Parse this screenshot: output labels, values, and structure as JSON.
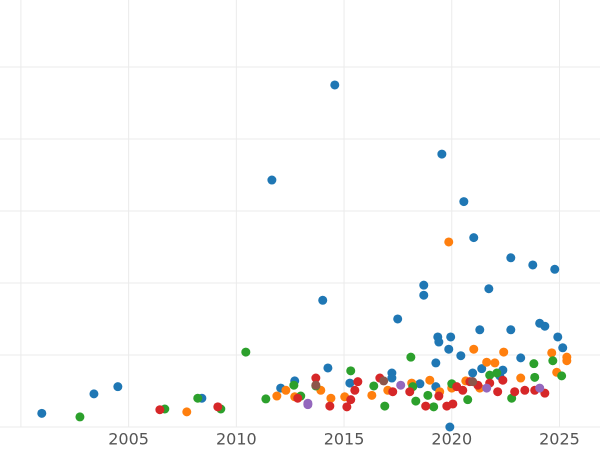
{
  "chart_data": {
    "type": "scatter",
    "xlim": [
      1999.03,
      2026.88
    ],
    "ylim": [
      0,
      5.93
    ],
    "xticks": [
      2005,
      2010,
      2015,
      2020,
      2025
    ],
    "xgrid": [
      2000,
      2005,
      2010,
      2015,
      2020,
      2025
    ],
    "ygrid": [
      0,
      1,
      2,
      3,
      4,
      5
    ],
    "grid": true,
    "series": [
      {
        "color": "#1f77b4",
        "x": [
          2000.97,
          2003.39,
          2004.5,
          2008.4,
          2011.65,
          2012.06,
          2012.71,
          2014.01,
          2014.25,
          2014.57,
          2015.27,
          2017.22,
          2017.22,
          2017.49,
          2018.7,
          2018.7,
          2019.26,
          2019.35,
          2019.4,
          2019.54,
          2019.86,
          2019.95,
          2019.91,
          2020.42,
          2020.56,
          2021.02,
          2020.97,
          2021.3,
          2021.39,
          2021.72,
          2022.23,
          2022.74,
          2022.74,
          2023.2,
          2023.76,
          2024.08,
          2024.32,
          2024.78,
          2024.92,
          2025.15,
          2019.26,
          2018.52,
          2022.37
        ],
        "values": [
          0.19,
          0.46,
          0.56,
          0.4,
          3.43,
          0.54,
          0.64,
          1.76,
          0.82,
          4.75,
          0.61,
          0.75,
          0.68,
          1.5,
          1.97,
          1.83,
          0.89,
          1.25,
          1.18,
          3.79,
          1.08,
          1.25,
          0,
          0.99,
          3.13,
          2.63,
          0.75,
          1.35,
          0.81,
          1.92,
          0.71,
          2.35,
          1.35,
          0.96,
          2.25,
          1.44,
          1.4,
          2.19,
          1.25,
          1.1,
          0.56,
          0.6,
          0.79
        ]
      },
      {
        "color": "#ff7f0e",
        "x": [
          2007.7,
          2011.88,
          2012.3,
          2012.71,
          2013.92,
          2014.39,
          2015.03,
          2016.29,
          2017.03,
          2018.14,
          2018.98,
          2019.86,
          2020.0,
          2020.65,
          2021.02,
          2021.62,
          2022.0,
          2022.41,
          2023.2,
          2024.64,
          2024.87,
          2025.34,
          2025.34,
          2021.3,
          2019.44
        ],
        "values": [
          0.21,
          0.43,
          0.51,
          0.42,
          0.51,
          0.4,
          0.42,
          0.44,
          0.51,
          0.61,
          0.65,
          2.57,
          0.54,
          0.64,
          1.08,
          0.9,
          0.89,
          1.04,
          0.68,
          1.03,
          0.76,
          0.97,
          0.92,
          0.54,
          0.49
        ]
      },
      {
        "color": "#2ca02c",
        "x": [
          2002.74,
          2006.68,
          2008.21,
          2009.28,
          2010.44,
          2011.37,
          2012.67,
          2012.99,
          2013.69,
          2015.31,
          2016.38,
          2016.89,
          2018.1,
          2018.33,
          2018.89,
          2019.16,
          2020.0,
          2020.74,
          2021.76,
          2022.09,
          2022.78,
          2023.81,
          2023.85,
          2024.69,
          2025.1,
          2018.19
        ],
        "values": [
          0.14,
          0.25,
          0.4,
          0.25,
          1.04,
          0.39,
          0.58,
          0.43,
          0.57,
          0.78,
          0.57,
          0.29,
          0.97,
          0.36,
          0.44,
          0.28,
          0.6,
          0.38,
          0.72,
          0.75,
          0.4,
          0.88,
          0.69,
          0.92,
          0.71,
          0.56
        ]
      },
      {
        "color": "#d62728",
        "x": [
          2006.45,
          2009.14,
          2012.85,
          2013.69,
          2014.34,
          2015.13,
          2015.31,
          2015.64,
          2016.66,
          2017.26,
          2018.05,
          2018.79,
          2019.4,
          2019.77,
          2020.05,
          2020.51,
          2020.84,
          2021.21,
          2021.76,
          2022.13,
          2022.37,
          2022.92,
          2023.39,
          2023.85,
          2024.32,
          2015.5,
          2020.23
        ],
        "values": [
          0.24,
          0.28,
          0.4,
          0.68,
          0.29,
          0.28,
          0.38,
          0.63,
          0.68,
          0.49,
          0.49,
          0.29,
          0.43,
          0.29,
          0.32,
          0.51,
          0.63,
          0.58,
          0.61,
          0.49,
          0.65,
          0.49,
          0.51,
          0.51,
          0.47,
          0.51,
          0.56
        ]
      },
      {
        "color": "#9467bd",
        "x": [
          2013.32,
          2017.63,
          2021.62,
          2024.08,
          2013.32
        ],
        "values": [
          0.31,
          0.58,
          0.54,
          0.54,
          0.33
        ]
      },
      {
        "color": "#8c564b",
        "x": [
          2016.84,
          2013.69,
          2020.97
        ],
        "values": [
          0.64,
          0.58,
          0.63
        ]
      }
    ]
  }
}
